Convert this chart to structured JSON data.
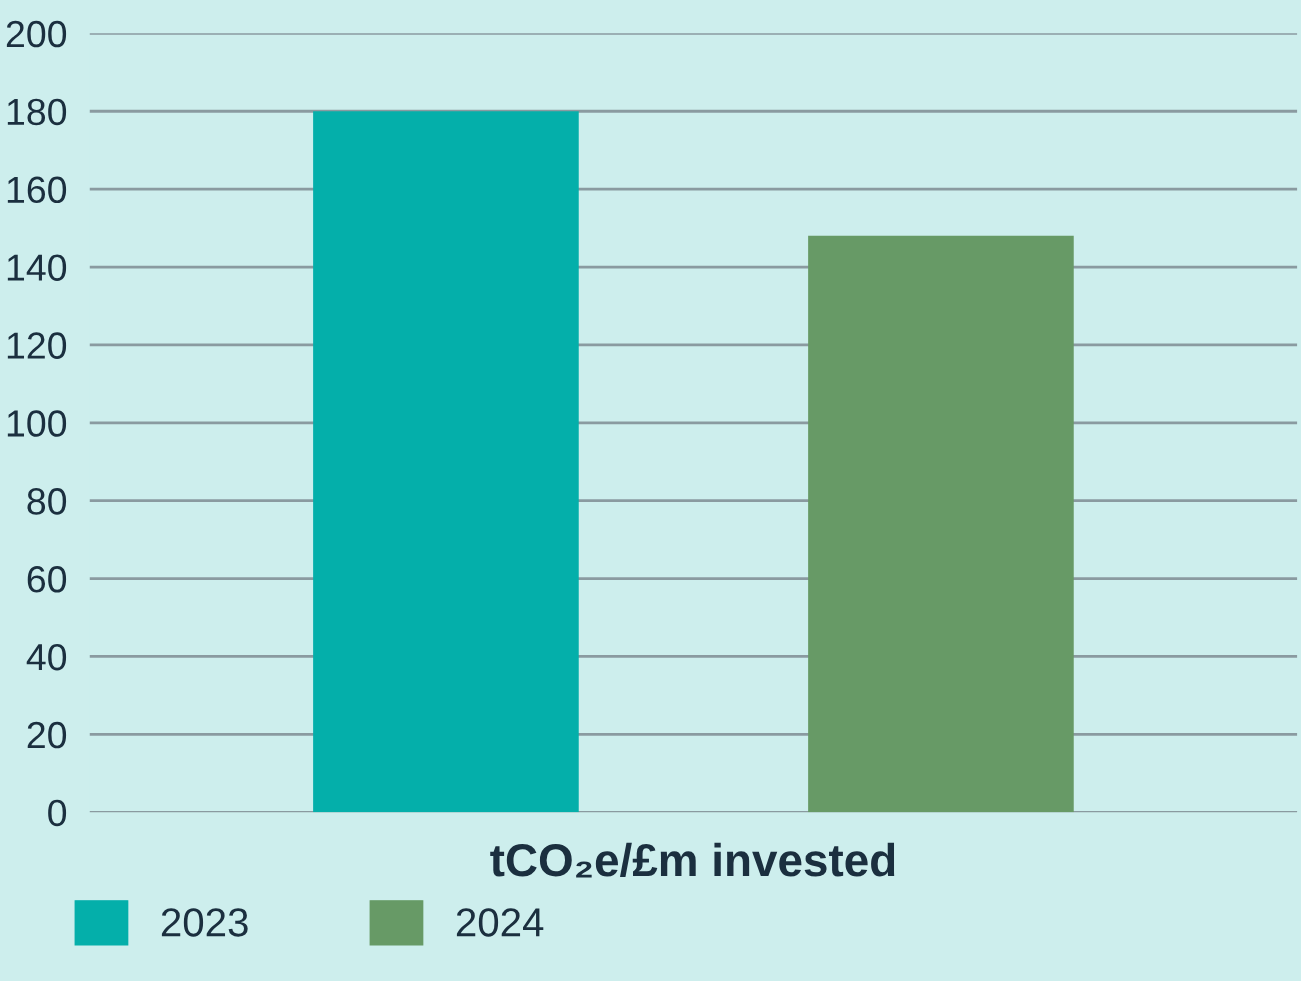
{
  "chart_data": {
    "type": "bar",
    "xlabel": "tCO₂e/£m invested",
    "categories": [
      null
    ],
    "series": [
      {
        "name": "2023",
        "color": "#04afaa",
        "values": [
          180
        ]
      },
      {
        "name": "2024",
        "color": "#679a66",
        "values": [
          148
        ]
      }
    ],
    "ylim": [
      0,
      200
    ],
    "yticks": [
      0,
      20,
      40,
      60,
      80,
      100,
      120,
      140,
      160,
      180,
      200
    ],
    "grid": "y",
    "legend": "bottom left",
    "tick_labels": "y"
  }
}
